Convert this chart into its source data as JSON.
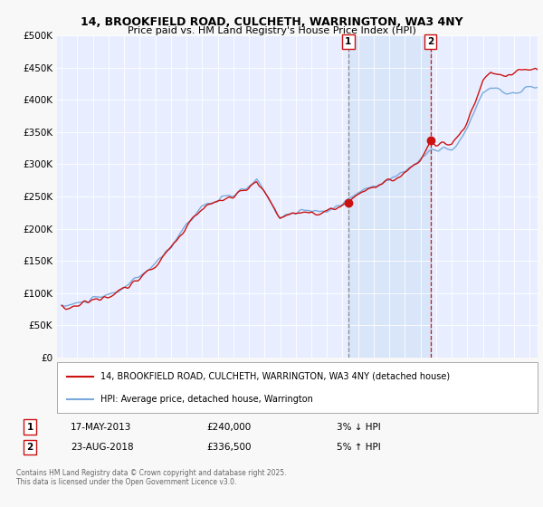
{
  "title_line1": "14, BROOKFIELD ROAD, CULCHETH, WARRINGTON, WA3 4NY",
  "title_line2": "Price paid vs. HM Land Registry's House Price Index (HPI)",
  "plot_bg_color": "#e8eeff",
  "grid_color": "#ffffff",
  "ylim": [
    0,
    500000
  ],
  "yticks": [
    0,
    50000,
    100000,
    150000,
    200000,
    250000,
    300000,
    350000,
    400000,
    450000,
    500000
  ],
  "ytick_labels": [
    "£0",
    "£50K",
    "£100K",
    "£150K",
    "£200K",
    "£250K",
    "£300K",
    "£350K",
    "£400K",
    "£450K",
    "£500K"
  ],
  "xlim_start": 1994.7,
  "xlim_end": 2025.5,
  "xticks": [
    1995,
    1996,
    1997,
    1998,
    1999,
    2000,
    2001,
    2002,
    2003,
    2004,
    2005,
    2006,
    2007,
    2008,
    2009,
    2010,
    2011,
    2012,
    2013,
    2014,
    2015,
    2016,
    2017,
    2018,
    2019,
    2020,
    2021,
    2022,
    2023,
    2024,
    2025
  ],
  "hpi_color": "#7aaadd",
  "price_color": "#cc1111",
  "sale1_x": 2013.37,
  "sale1_y": 240000,
  "sale1_label": "1",
  "sale2_x": 2018.63,
  "sale2_y": 336500,
  "sale2_label": "2",
  "vline1_x": 2013.37,
  "vline2_x": 2018.63,
  "vline1_color": "#888888",
  "vline1_style": "--",
  "vline2_color": "#cc1111",
  "vline2_style": "--",
  "shade_color": "#ccddf5",
  "shade_alpha": 0.5,
  "legend_label1": "14, BROOKFIELD ROAD, CULCHETH, WARRINGTON, WA3 4NY (detached house)",
  "legend_label2": "HPI: Average price, detached house, Warrington",
  "note1_label": "1",
  "note1_date": "17-MAY-2013",
  "note1_price": "£240,000",
  "note1_info": "3% ↓ HPI",
  "note2_label": "2",
  "note2_date": "23-AUG-2018",
  "note2_price": "£336,500",
  "note2_info": "5% ↑ HPI",
  "footer": "Contains HM Land Registry data © Crown copyright and database right 2025.\nThis data is licensed under the Open Government Licence v3.0."
}
